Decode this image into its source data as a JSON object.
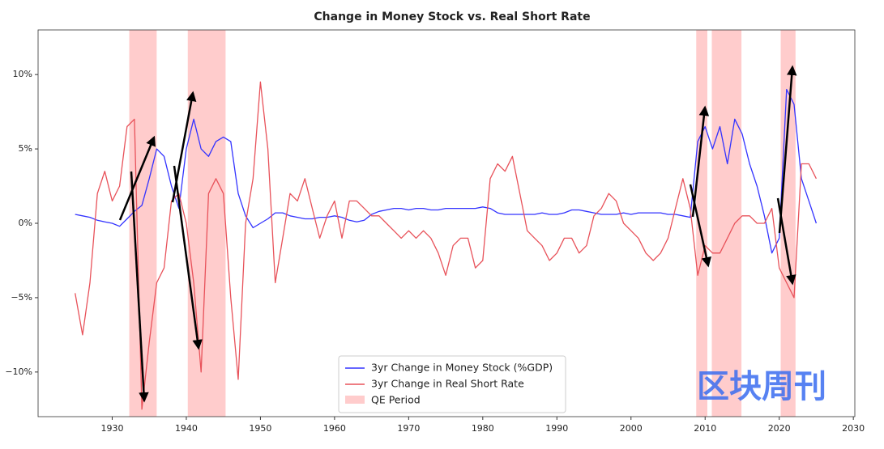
{
  "chart_data": {
    "type": "line",
    "title": "Change in Money Stock vs. Real Short Rate",
    "x": [
      1925,
      1926,
      1927,
      1928,
      1929,
      1930,
      1931,
      1932,
      1933,
      1934,
      1935,
      1936,
      1937,
      1938,
      1939,
      1940,
      1941,
      1942,
      1943,
      1944,
      1945,
      1946,
      1947,
      1948,
      1949,
      1950,
      1951,
      1952,
      1953,
      1954,
      1955,
      1956,
      1957,
      1958,
      1959,
      1960,
      1961,
      1962,
      1963,
      1964,
      1965,
      1966,
      1967,
      1968,
      1969,
      1970,
      1971,
      1972,
      1973,
      1974,
      1975,
      1976,
      1977,
      1978,
      1979,
      1980,
      1981,
      1982,
      1983,
      1984,
      1985,
      1986,
      1987,
      1988,
      1989,
      1990,
      1991,
      1992,
      1993,
      1994,
      1995,
      1996,
      1997,
      1998,
      1999,
      2000,
      2001,
      2002,
      2003,
      2004,
      2005,
      2006,
      2007,
      2008,
      2009,
      2010,
      2011,
      2012,
      2013,
      2014,
      2015,
      2016,
      2017,
      2018,
      2019,
      2020,
      2021,
      2022,
      2023,
      2024,
      2025
    ],
    "series": [
      {
        "name": "3yr Change in Money Stock (%GDP)",
        "color": "#3333ff",
        "values": [
          0.6,
          0.5,
          0.4,
          0.2,
          0.1,
          0.0,
          -0.2,
          0.3,
          0.8,
          1.2,
          3,
          5,
          4.5,
          2.5,
          1.0,
          5,
          7,
          5,
          4.5,
          5.5,
          5.8,
          5.5,
          2,
          0.5,
          -0.3,
          0,
          0.3,
          0.7,
          0.7,
          0.5,
          0.4,
          0.3,
          0.3,
          0.4,
          0.4,
          0.5,
          0.4,
          0.2,
          0.1,
          0.2,
          0.6,
          0.8,
          0.9,
          1.0,
          1.0,
          0.9,
          1.0,
          1.0,
          0.9,
          0.9,
          1.0,
          1.0,
          1.0,
          1.0,
          1.0,
          1.1,
          1.0,
          0.7,
          0.6,
          0.6,
          0.6,
          0.6,
          0.6,
          0.7,
          0.6,
          0.6,
          0.7,
          0.9,
          0.9,
          0.8,
          0.7,
          0.6,
          0.6,
          0.6,
          0.7,
          0.6,
          0.7,
          0.7,
          0.7,
          0.7,
          0.6,
          0.6,
          0.5,
          0.4,
          5.5,
          6.5,
          5,
          6.5,
          4,
          7,
          6,
          4,
          2.5,
          0.5,
          -2,
          -1,
          9,
          8,
          3,
          1.5,
          0
        ]
      },
      {
        "name": "3yr Change in Real Short Rate",
        "color": "#e8525a",
        "values": [
          -4.7,
          -7.5,
          -4,
          2,
          3.5,
          1.5,
          2.5,
          6.5,
          7,
          -12.5,
          -8,
          -4,
          -3,
          1.5,
          2,
          0,
          -4,
          -10,
          2,
          3,
          2,
          -5,
          -10.5,
          0,
          3,
          9.5,
          5,
          -4,
          -1,
          2,
          1.5,
          3,
          1,
          -1,
          0.5,
          1.5,
          -1,
          1.5,
          1.5,
          1,
          0.5,
          0.5,
          0,
          -0.5,
          -1,
          -0.5,
          -1,
          -0.5,
          -1,
          -2,
          -3.5,
          -1.5,
          -1,
          -1,
          -3,
          -2.5,
          3,
          4,
          3.5,
          4.5,
          2,
          -0.5,
          -1,
          -1.5,
          -2.5,
          -2,
          -1,
          -1,
          -2,
          -1.5,
          0.5,
          1,
          2,
          1.5,
          0,
          -0.5,
          -1,
          -2,
          -2.5,
          -2,
          -1,
          1,
          3,
          1,
          -3.5,
          -1.5,
          -2,
          -2,
          -1,
          0,
          0.5,
          0.5,
          0,
          0,
          1,
          -3,
          -4,
          -5,
          4,
          4,
          3
        ]
      }
    ],
    "qe_name": "QE Period",
    "qe_color": "#ffcccc",
    "qe_periods": [
      [
        1932.3,
        1936
      ],
      [
        1940.2,
        1945.3
      ],
      [
        2008.8,
        2010.3
      ],
      [
        2010.9,
        2014.9
      ],
      [
        2020.2,
        2022.2
      ]
    ],
    "xlim": [
      1920,
      2030.2
    ],
    "xticks": [
      1930,
      1940,
      1950,
      1960,
      1970,
      1980,
      1990,
      2000,
      2010,
      2020,
      2030
    ],
    "ylim": [
      -13,
      13
    ],
    "yticks": [
      {
        "value": -10,
        "label": "−10%"
      },
      {
        "value": -5,
        "label": "−5%"
      },
      {
        "value": 0,
        "label": "0%"
      },
      {
        "value": 5,
        "label": "5%"
      },
      {
        "value": 10,
        "label": "10%"
      }
    ],
    "watermark": "区块周刊"
  }
}
